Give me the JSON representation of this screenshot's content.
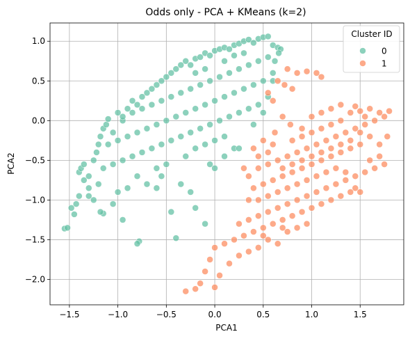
{
  "chart_data": {
    "type": "scatter",
    "title": "Odds only - PCA + KMeans (k=2)",
    "xlabel": "PCA1",
    "ylabel": "PCA2",
    "xlim": [
      -1.7,
      1.95
    ],
    "ylim": [
      -2.32,
      1.23
    ],
    "xticks": [
      -1.5,
      -1.0,
      -0.5,
      0.0,
      0.5,
      1.0,
      1.5
    ],
    "xtick_labels": [
      "−1.5",
      "−1.0",
      "−0.5",
      "0.0",
      "0.5",
      "1.0",
      "1.5"
    ],
    "yticks": [
      -2.0,
      -1.5,
      -1.0,
      -0.5,
      0.0,
      0.5,
      1.0
    ],
    "ytick_labels": [
      "−2.0",
      "−1.5",
      "−1.0",
      "−0.5",
      "0.0",
      "0.5",
      "1.0"
    ],
    "grid": true,
    "legend": {
      "title": "Cluster ID",
      "placement": "top-right",
      "entries": [
        {
          "label": "0",
          "color": "#66c2a5"
        },
        {
          "label": "1",
          "color": "#fc8d62"
        }
      ]
    },
    "series": [
      {
        "name": "0",
        "color": "#66c2a5",
        "points": [
          [
            -1.55,
            -1.36
          ],
          [
            -1.52,
            -1.35
          ],
          [
            -1.45,
            -1.18
          ],
          [
            -1.48,
            -1.1
          ],
          [
            -1.43,
            -1.05
          ],
          [
            -1.4,
            -0.95
          ],
          [
            -1.4,
            -0.65
          ],
          [
            -1.38,
            -0.6
          ],
          [
            -1.35,
            -0.55
          ],
          [
            -1.3,
            -0.7
          ],
          [
            -1.3,
            -0.85
          ],
          [
            -1.25,
            -0.5
          ],
          [
            -1.22,
            -0.4
          ],
          [
            -1.2,
            -0.3
          ],
          [
            -1.18,
            -0.2
          ],
          [
            -1.15,
            -0.1
          ],
          [
            -1.12,
            -0.05
          ],
          [
            -1.1,
            0.02
          ],
          [
            -1.05,
            -0.15
          ],
          [
            -1.0,
            0.1
          ],
          [
            -0.95,
            0.0
          ],
          [
            -0.9,
            0.15
          ],
          [
            -0.85,
            0.25
          ],
          [
            -0.8,
            0.2
          ],
          [
            -0.75,
            0.3
          ],
          [
            -0.7,
            0.35
          ],
          [
            -0.65,
            0.4
          ],
          [
            -0.6,
            0.45
          ],
          [
            -0.55,
            0.5
          ],
          [
            -0.5,
            0.55
          ],
          [
            -0.45,
            0.6
          ],
          [
            -0.4,
            0.65
          ],
          [
            -0.35,
            0.7
          ],
          [
            -0.3,
            0.75
          ],
          [
            -0.25,
            0.7
          ],
          [
            -0.2,
            0.78
          ],
          [
            -0.15,
            0.8
          ],
          [
            -0.1,
            0.85
          ],
          [
            -0.05,
            0.82
          ],
          [
            0.0,
            0.88
          ],
          [
            0.05,
            0.9
          ],
          [
            0.1,
            0.92
          ],
          [
            0.15,
            0.9
          ],
          [
            0.2,
            0.95
          ],
          [
            0.25,
            0.97
          ],
          [
            0.3,
            1.0
          ],
          [
            0.35,
            1.02
          ],
          [
            0.4,
            0.98
          ],
          [
            0.45,
            1.03
          ],
          [
            0.5,
            1.05
          ],
          [
            0.55,
            1.06
          ],
          [
            0.6,
            0.95
          ],
          [
            0.65,
            0.92
          ],
          [
            0.68,
            0.9
          ],
          [
            0.55,
            0.8
          ],
          [
            0.45,
            0.75
          ],
          [
            0.35,
            0.7
          ],
          [
            0.25,
            0.65
          ],
          [
            0.15,
            0.6
          ],
          [
            0.05,
            0.55
          ],
          [
            -0.05,
            0.5
          ],
          [
            -0.15,
            0.45
          ],
          [
            -0.25,
            0.4
          ],
          [
            -0.35,
            0.35
          ],
          [
            -0.45,
            0.3
          ],
          [
            -0.55,
            0.25
          ],
          [
            -0.65,
            0.2
          ],
          [
            -0.75,
            0.15
          ],
          [
            -0.85,
            0.1
          ],
          [
            -0.95,
            0.05
          ],
          [
            0.6,
            0.6
          ],
          [
            0.5,
            0.5
          ],
          [
            0.4,
            0.45
          ],
          [
            0.3,
            0.4
          ],
          [
            0.2,
            0.35
          ],
          [
            0.1,
            0.3
          ],
          [
            0.0,
            0.25
          ],
          [
            -0.1,
            0.2
          ],
          [
            -0.2,
            0.15
          ],
          [
            -0.3,
            0.1
          ],
          [
            -0.4,
            0.05
          ],
          [
            -0.5,
            0.0
          ],
          [
            -0.6,
            -0.05
          ],
          [
            -0.7,
            -0.1
          ],
          [
            -0.8,
            -0.15
          ],
          [
            -0.9,
            -0.2
          ],
          [
            -1.0,
            -0.25
          ],
          [
            -1.1,
            -0.3
          ],
          [
            0.55,
            0.3
          ],
          [
            0.45,
            0.2
          ],
          [
            0.35,
            0.15
          ],
          [
            0.25,
            0.1
          ],
          [
            0.15,
            0.05
          ],
          [
            0.05,
            0.0
          ],
          [
            -0.05,
            -0.05
          ],
          [
            -0.15,
            -0.1
          ],
          [
            -0.25,
            -0.15
          ],
          [
            -0.35,
            -0.2
          ],
          [
            -0.45,
            -0.25
          ],
          [
            -0.55,
            -0.3
          ],
          [
            -0.65,
            -0.35
          ],
          [
            -0.75,
            -0.4
          ],
          [
            -0.85,
            -0.45
          ],
          [
            -0.95,
            -0.5
          ],
          [
            -1.05,
            -0.55
          ],
          [
            -1.15,
            -0.6
          ],
          [
            -0.6,
            -0.6
          ],
          [
            -0.5,
            -0.55
          ],
          [
            -0.3,
            -0.45
          ],
          [
            -0.2,
            -0.35
          ],
          [
            -0.1,
            -0.3
          ],
          [
            0.0,
            -0.25
          ],
          [
            0.1,
            -0.2
          ],
          [
            -0.8,
            -0.7
          ],
          [
            -0.9,
            -0.85
          ],
          [
            -1.0,
            -0.9
          ],
          [
            -1.05,
            -1.05
          ],
          [
            -1.15,
            -1.17
          ],
          [
            -1.18,
            -1.15
          ],
          [
            -0.95,
            -1.25
          ],
          [
            -0.78,
            -1.52
          ],
          [
            -0.8,
            -1.55
          ],
          [
            -0.45,
            -1.15
          ],
          [
            -0.35,
            -0.8
          ],
          [
            -0.2,
            -1.1
          ],
          [
            -0.1,
            -1.3
          ],
          [
            0.0,
            -0.6
          ],
          [
            -0.05,
            -0.55
          ],
          [
            0.2,
            -0.35
          ],
          [
            0.25,
            -0.35
          ],
          [
            0.1,
            -0.45
          ],
          [
            -0.4,
            -1.48
          ],
          [
            -0.6,
            -0.85
          ],
          [
            -0.7,
            -0.8
          ],
          [
            -0.55,
            -0.7
          ],
          [
            -0.25,
            -0.9
          ],
          [
            -1.25,
            -1.0
          ],
          [
            -1.3,
            -0.95
          ],
          [
            -1.35,
            -0.75
          ],
          [
            -1.2,
            -0.8
          ],
          [
            0.4,
            -0.05
          ],
          [
            0.5,
            0.1
          ],
          [
            0.6,
            0.5
          ],
          [
            0.62,
            0.75
          ],
          [
            0.66,
            0.85
          ],
          [
            0.3,
            0.85
          ],
          [
            0.2,
            0.82
          ],
          [
            0.1,
            0.75
          ],
          [
            -0.1,
            0.65
          ],
          [
            -0.2,
            0.6
          ]
        ]
      },
      {
        "name": "1",
        "color": "#fc8d62",
        "points": [
          [
            0.75,
            0.65
          ],
          [
            0.85,
            0.6
          ],
          [
            0.95,
            0.62
          ],
          [
            1.05,
            0.6
          ],
          [
            1.1,
            0.55
          ],
          [
            0.65,
            0.5
          ],
          [
            0.72,
            0.45
          ],
          [
            0.8,
            0.4
          ],
          [
            0.55,
            0.35
          ],
          [
            0.6,
            0.25
          ],
          [
            1.4,
            0.1
          ],
          [
            1.5,
            0.12
          ],
          [
            1.6,
            0.15
          ],
          [
            1.7,
            0.1
          ],
          [
            1.8,
            0.12
          ],
          [
            1.75,
            0.05
          ],
          [
            1.65,
            0.0
          ],
          [
            1.55,
            -0.05
          ],
          [
            1.45,
            -0.1
          ],
          [
            1.35,
            -0.15
          ],
          [
            1.25,
            -0.2
          ],
          [
            1.15,
            -0.25
          ],
          [
            1.05,
            -0.3
          ],
          [
            0.95,
            -0.35
          ],
          [
            0.85,
            -0.4
          ],
          [
            0.75,
            -0.45
          ],
          [
            0.65,
            -0.5
          ],
          [
            0.55,
            -0.55
          ],
          [
            0.45,
            -0.6
          ],
          [
            0.35,
            -0.7
          ],
          [
            1.3,
            0.0
          ],
          [
            1.2,
            -0.05
          ],
          [
            1.1,
            -0.1
          ],
          [
            1.0,
            -0.15
          ],
          [
            0.9,
            -0.2
          ],
          [
            0.8,
            -0.25
          ],
          [
            1.5,
            -0.3
          ],
          [
            1.4,
            -0.35
          ],
          [
            1.3,
            -0.4
          ],
          [
            1.2,
            -0.45
          ],
          [
            1.1,
            -0.5
          ],
          [
            1.0,
            -0.55
          ],
          [
            0.9,
            -0.6
          ],
          [
            0.8,
            -0.65
          ],
          [
            0.7,
            -0.7
          ],
          [
            0.6,
            -0.75
          ],
          [
            0.5,
            -0.8
          ],
          [
            0.4,
            -0.85
          ],
          [
            1.6,
            -0.5
          ],
          [
            1.7,
            -0.45
          ],
          [
            1.75,
            -0.55
          ],
          [
            1.65,
            -0.6
          ],
          [
            1.55,
            -0.65
          ],
          [
            1.45,
            -0.7
          ],
          [
            1.35,
            -0.75
          ],
          [
            1.25,
            -0.8
          ],
          [
            1.15,
            -0.85
          ],
          [
            1.05,
            -0.9
          ],
          [
            0.95,
            -0.95
          ],
          [
            0.85,
            -1.0
          ],
          [
            0.75,
            -1.05
          ],
          [
            0.65,
            -1.1
          ],
          [
            0.55,
            -1.15
          ],
          [
            0.45,
            -1.2
          ],
          [
            0.35,
            -1.25
          ],
          [
            0.25,
            -1.3
          ],
          [
            1.3,
            -0.95
          ],
          [
            1.2,
            -1.0
          ],
          [
            1.1,
            -1.05
          ],
          [
            1.0,
            -1.1
          ],
          [
            0.9,
            -1.15
          ],
          [
            0.8,
            -1.2
          ],
          [
            0.7,
            -1.25
          ],
          [
            0.6,
            -1.3
          ],
          [
            0.5,
            -1.35
          ],
          [
            0.4,
            -1.4
          ],
          [
            0.3,
            -1.45
          ],
          [
            0.2,
            -1.5
          ],
          [
            0.1,
            -1.55
          ],
          [
            0.0,
            -1.6
          ],
          [
            -0.05,
            -1.75
          ],
          [
            -0.1,
            -1.9
          ],
          [
            -0.15,
            -2.05
          ],
          [
            -0.2,
            -2.12
          ],
          [
            -0.3,
            -2.15
          ],
          [
            0.0,
            -2.1
          ],
          [
            0.05,
            -1.95
          ],
          [
            0.15,
            -1.8
          ],
          [
            0.25,
            -1.7
          ],
          [
            0.35,
            -1.65
          ],
          [
            0.45,
            -1.6
          ],
          [
            0.5,
            -1.45
          ],
          [
            0.55,
            -1.5
          ],
          [
            0.65,
            -1.55
          ],
          [
            0.75,
            -1.4
          ],
          [
            0.7,
            -1.35
          ],
          [
            0.85,
            -1.35
          ],
          [
            0.95,
            -1.3
          ],
          [
            0.35,
            -1.0
          ],
          [
            0.3,
            -0.6
          ],
          [
            0.4,
            -0.35
          ],
          [
            0.5,
            -0.25
          ],
          [
            0.55,
            -0.4
          ],
          [
            0.45,
            -0.45
          ],
          [
            1.7,
            -0.3
          ],
          [
            1.78,
            -0.2
          ],
          [
            1.6,
            -0.2
          ],
          [
            1.5,
            -0.15
          ],
          [
            1.4,
            -0.25
          ],
          [
            1.3,
            -0.3
          ],
          [
            1.2,
            -0.35
          ],
          [
            1.1,
            -0.4
          ],
          [
            1.0,
            -0.45
          ],
          [
            0.9,
            -0.5
          ],
          [
            0.8,
            -0.55
          ],
          [
            0.7,
            -0.6
          ],
          [
            1.5,
            -0.9
          ],
          [
            1.45,
            -0.85
          ],
          [
            1.4,
            -0.9
          ],
          [
            1.35,
            -0.65
          ],
          [
            1.25,
            -0.6
          ],
          [
            1.15,
            -0.65
          ],
          [
            1.05,
            -0.7
          ],
          [
            0.95,
            -0.75
          ],
          [
            0.85,
            -0.8
          ],
          [
            0.75,
            -0.85
          ],
          [
            0.65,
            -0.9
          ],
          [
            0.55,
            -0.95
          ],
          [
            0.45,
            -1.0
          ],
          [
            0.6,
            -0.3
          ],
          [
            0.62,
            -0.15
          ],
          [
            0.7,
            0.05
          ],
          [
            0.78,
            -0.05
          ],
          [
            0.9,
            -0.1
          ],
          [
            1.0,
            0.05
          ],
          [
            1.1,
            0.1
          ],
          [
            1.2,
            0.15
          ],
          [
            1.3,
            0.2
          ],
          [
            1.45,
            0.18
          ],
          [
            1.55,
            0.05
          ]
        ]
      }
    ]
  }
}
